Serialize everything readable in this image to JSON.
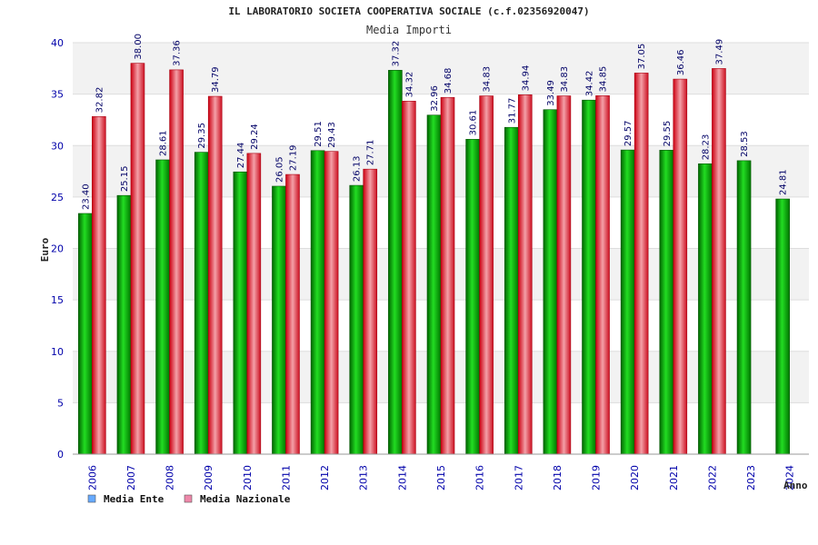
{
  "chart_data": {
    "type": "bar",
    "title": "IL LABORATORIO SOCIETA COOPERATIVA SOCIALE (c.f.02356920047)",
    "subtitle": "Media Importi",
    "ylabel": "Euro",
    "xlabel": "Anno",
    "ylim": [
      0,
      40
    ],
    "yticks": [
      0,
      5,
      10,
      15,
      20,
      25,
      30,
      35,
      40
    ],
    "categories": [
      "2006",
      "2007",
      "2008",
      "2009",
      "2010",
      "2011",
      "2012",
      "2013",
      "2014",
      "2015",
      "2016",
      "2017",
      "2018",
      "2019",
      "2020",
      "2021",
      "2022",
      "2023",
      "2024"
    ],
    "series": [
      {
        "name": "Media Ente",
        "color": "#00aa00",
        "legend_color": "#66aaff",
        "values": [
          23.4,
          25.15,
          28.61,
          29.35,
          27.44,
          26.05,
          29.51,
          26.13,
          37.32,
          32.96,
          30.61,
          31.77,
          33.49,
          34.42,
          29.57,
          29.55,
          28.23,
          28.53,
          24.81
        ],
        "labels": [
          "23.40",
          "25.15",
          "28.61",
          "29.35",
          "27.44",
          "26.05",
          "29.51",
          "26.13",
          "37.32",
          "32.96",
          "30.61",
          "31.77",
          "33.49",
          "34.42",
          "29.57",
          "29.55",
          "28.23",
          "28.53",
          "24.81"
        ]
      },
      {
        "name": "Media Nazionale",
        "color": "#dd2233",
        "legend_color": "#ee88aa",
        "values": [
          32.82,
          38.0,
          37.36,
          34.79,
          29.24,
          27.19,
          29.43,
          27.71,
          34.32,
          34.68,
          34.83,
          34.94,
          34.83,
          34.85,
          37.05,
          36.46,
          37.49,
          null,
          null
        ],
        "labels": [
          "32.82",
          "38.00",
          "37.36",
          "34.79",
          "29.24",
          "27.19",
          "29.43",
          "27.71",
          "34.32",
          "34.68",
          "34.83",
          "34.94",
          "34.83",
          "34.85",
          "37.05",
          "36.46",
          "37.49",
          "",
          ""
        ]
      }
    ],
    "grid": true,
    "legend_position": "bottom-left"
  }
}
